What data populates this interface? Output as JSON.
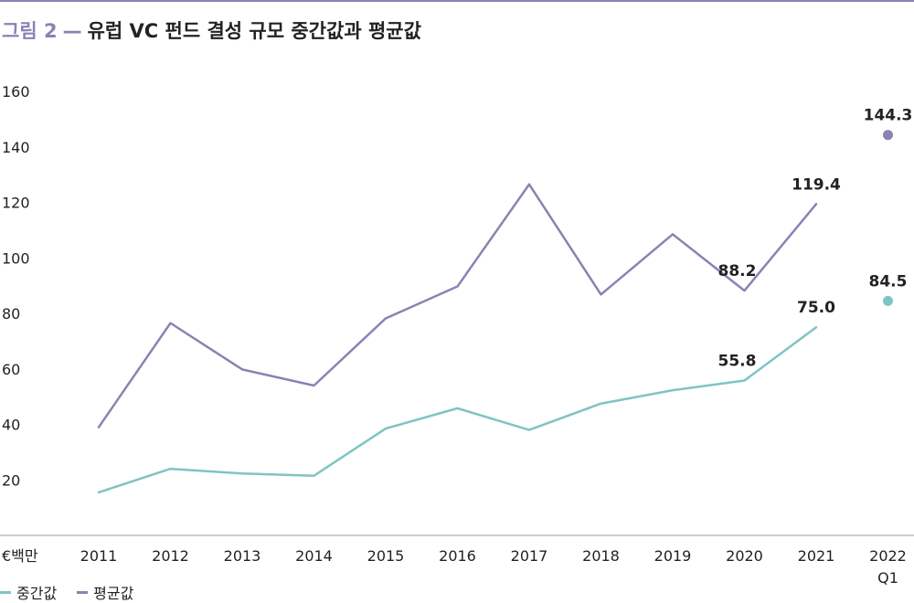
{
  "figure": {
    "label": "그림 2",
    "separator": "—",
    "title": "유럽 VC 펀드 결성 규모 중간값과 평균값"
  },
  "chart_data": {
    "type": "line",
    "ylabel": "€백만",
    "ylim": [
      0,
      160
    ],
    "yticks": [
      20,
      40,
      60,
      80,
      100,
      120,
      140,
      160
    ],
    "categories": [
      "2011",
      "2012",
      "2013",
      "2014",
      "2015",
      "2016",
      "2017",
      "2018",
      "2019",
      "2020",
      "2021",
      "2022"
    ],
    "category_sublabels": [
      "",
      "",
      "",
      "",
      "",
      "",
      "",
      "",
      "",
      "",
      "",
      "Q1"
    ],
    "grid": false,
    "legend_position": "bottom-left",
    "series": [
      {
        "name": "중간값",
        "color": "#7fc4c4",
        "values": [
          15.5,
          24,
          22.3,
          21.5,
          38.5,
          45.8,
          38,
          47.5,
          52.3,
          55.8,
          75.0,
          84.5
        ],
        "point_only_last": true,
        "labels": {
          "9": "55.8",
          "10": "75.0",
          "11": "84.5"
        }
      },
      {
        "name": "평균값",
        "color": "#8c82b4",
        "values": [
          39,
          76.5,
          59.8,
          54,
          78.2,
          89.7,
          126.5,
          86.8,
          108.5,
          88.2,
          119.4,
          144.3
        ],
        "point_only_last": true,
        "labels": {
          "9": "88.2",
          "10": "119.4",
          "11": "144.3"
        }
      }
    ]
  }
}
